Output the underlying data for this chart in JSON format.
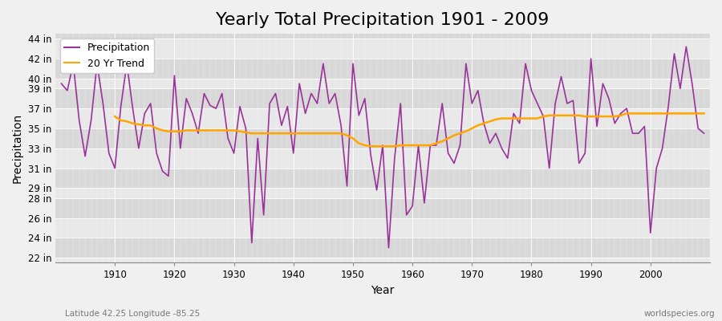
{
  "title": "Yearly Total Precipitation 1901 - 2009",
  "xlabel": "Year",
  "ylabel": "Precipitation",
  "subtitle_left": "Latitude 42.25 Longitude -85.25",
  "subtitle_right": "worldspecies.org",
  "years": [
    1901,
    1902,
    1903,
    1904,
    1905,
    1906,
    1907,
    1908,
    1909,
    1910,
    1911,
    1912,
    1913,
    1914,
    1915,
    1916,
    1917,
    1918,
    1919,
    1920,
    1921,
    1922,
    1923,
    1924,
    1925,
    1926,
    1927,
    1928,
    1929,
    1930,
    1931,
    1932,
    1933,
    1934,
    1935,
    1936,
    1937,
    1938,
    1939,
    1940,
    1941,
    1942,
    1943,
    1944,
    1945,
    1946,
    1947,
    1948,
    1949,
    1950,
    1951,
    1952,
    1953,
    1954,
    1955,
    1956,
    1957,
    1958,
    1959,
    1960,
    1961,
    1962,
    1963,
    1964,
    1965,
    1966,
    1967,
    1968,
    1969,
    1970,
    1971,
    1972,
    1973,
    1974,
    1975,
    1976,
    1977,
    1978,
    1979,
    1980,
    1981,
    1982,
    1983,
    1984,
    1985,
    1986,
    1987,
    1988,
    1989,
    1990,
    1991,
    1992,
    1993,
    1994,
    1995,
    1996,
    1997,
    1998,
    1999,
    2000,
    2001,
    2002,
    2003,
    2004,
    2005,
    2006,
    2007,
    2008,
    2009
  ],
  "precipitation": [
    39.5,
    38.8,
    41.5,
    35.8,
    32.2,
    35.8,
    41.5,
    37.5,
    32.5,
    31.0,
    37.2,
    41.5,
    37.0,
    33.0,
    36.5,
    37.5,
    32.5,
    30.7,
    30.2,
    40.3,
    33.0,
    38.0,
    36.5,
    34.5,
    38.5,
    37.3,
    37.0,
    38.5,
    34.0,
    32.5,
    37.2,
    35.0,
    23.5,
    34.0,
    26.3,
    37.5,
    38.5,
    35.3,
    37.2,
    32.5,
    39.5,
    36.5,
    38.5,
    37.5,
    41.5,
    37.5,
    38.5,
    35.3,
    29.2,
    41.5,
    36.3,
    38.0,
    32.3,
    28.8,
    33.3,
    23.0,
    32.0,
    37.5,
    26.3,
    27.2,
    33.3,
    27.5,
    33.3,
    33.3,
    37.5,
    32.5,
    31.5,
    33.3,
    41.5,
    37.5,
    38.8,
    35.5,
    33.5,
    34.5,
    33.0,
    32.0,
    36.5,
    35.5,
    41.5,
    38.8,
    37.5,
    36.2,
    31.0,
    37.5,
    40.2,
    37.5,
    37.8,
    31.5,
    32.5,
    42.0,
    35.2,
    39.5,
    38.0,
    35.5,
    36.5,
    37.0,
    34.5,
    34.5,
    35.2,
    24.5,
    31.0,
    33.0,
    37.2,
    42.5,
    39.0,
    43.2,
    39.5,
    35.0,
    34.5
  ],
  "trend_years": [
    1910,
    1911,
    1912,
    1913,
    1914,
    1915,
    1916,
    1917,
    1918,
    1919,
    1920,
    1921,
    1922,
    1923,
    1924,
    1925,
    1926,
    1927,
    1928,
    1929,
    1930,
    1931,
    1932,
    1933,
    1934,
    1935,
    1936,
    1937,
    1938,
    1939,
    1940,
    1941,
    1942,
    1943,
    1944,
    1945,
    1946,
    1947,
    1948,
    1949,
    1950,
    1951,
    1952,
    1953,
    1954,
    1955,
    1956,
    1957,
    1958,
    1959,
    1960,
    1961,
    1962,
    1963,
    1964,
    1965,
    1966,
    1967,
    1968,
    1969,
    1970,
    1971,
    1972,
    1973,
    1974,
    1975,
    1976,
    1977,
    1978,
    1979,
    1980,
    1981,
    1982,
    1983,
    1984,
    1985,
    1986,
    1987,
    1988,
    1989,
    1990,
    1991,
    1992,
    1993,
    1994,
    1995,
    1996,
    1997,
    1998,
    1999,
    2000,
    2001,
    2002,
    2003,
    2004,
    2005,
    2006,
    2007,
    2008,
    2009
  ],
  "trend": [
    36.2,
    35.8,
    35.7,
    35.5,
    35.4,
    35.3,
    35.3,
    35.0,
    34.8,
    34.7,
    34.7,
    34.7,
    34.8,
    34.8,
    34.8,
    34.8,
    34.8,
    34.8,
    34.8,
    34.8,
    34.8,
    34.7,
    34.6,
    34.5,
    34.5,
    34.5,
    34.5,
    34.5,
    34.5,
    34.5,
    34.5,
    34.5,
    34.5,
    34.5,
    34.5,
    34.5,
    34.5,
    34.5,
    34.5,
    34.3,
    34.0,
    33.5,
    33.3,
    33.2,
    33.2,
    33.2,
    33.2,
    33.2,
    33.3,
    33.3,
    33.3,
    33.3,
    33.3,
    33.3,
    33.5,
    33.7,
    34.0,
    34.3,
    34.5,
    34.7,
    35.0,
    35.3,
    35.5,
    35.7,
    35.9,
    36.0,
    36.0,
    36.0,
    36.0,
    36.0,
    36.0,
    36.0,
    36.2,
    36.3,
    36.3,
    36.3,
    36.3,
    36.3,
    36.3,
    36.2,
    36.2,
    36.2,
    36.2,
    36.2,
    36.2,
    36.3,
    36.5,
    36.5,
    36.5,
    36.5,
    36.5,
    36.5,
    36.5,
    36.5,
    36.5,
    36.5,
    36.5,
    36.5,
    36.5,
    36.5
  ],
  "precip_color": "#993399",
  "trend_color": "#FFA500",
  "fig_bg_color": "#f0f0f0",
  "plot_bg_color_light": "#e8e8e8",
  "plot_bg_color_dark": "#d8d8d8",
  "grid_color": "#ffffff",
  "ylim": [
    21.5,
    44.5
  ],
  "yticks": [
    22,
    24,
    26,
    28,
    29,
    31,
    33,
    35,
    37,
    39,
    40,
    42,
    44
  ],
  "xlim": [
    1900,
    2010
  ],
  "xticks": [
    1910,
    1920,
    1930,
    1940,
    1950,
    1960,
    1970,
    1980,
    1990,
    2000
  ],
  "title_fontsize": 16,
  "axis_label_fontsize": 10,
  "tick_label_fontsize": 8.5,
  "legend_fontsize": 9
}
